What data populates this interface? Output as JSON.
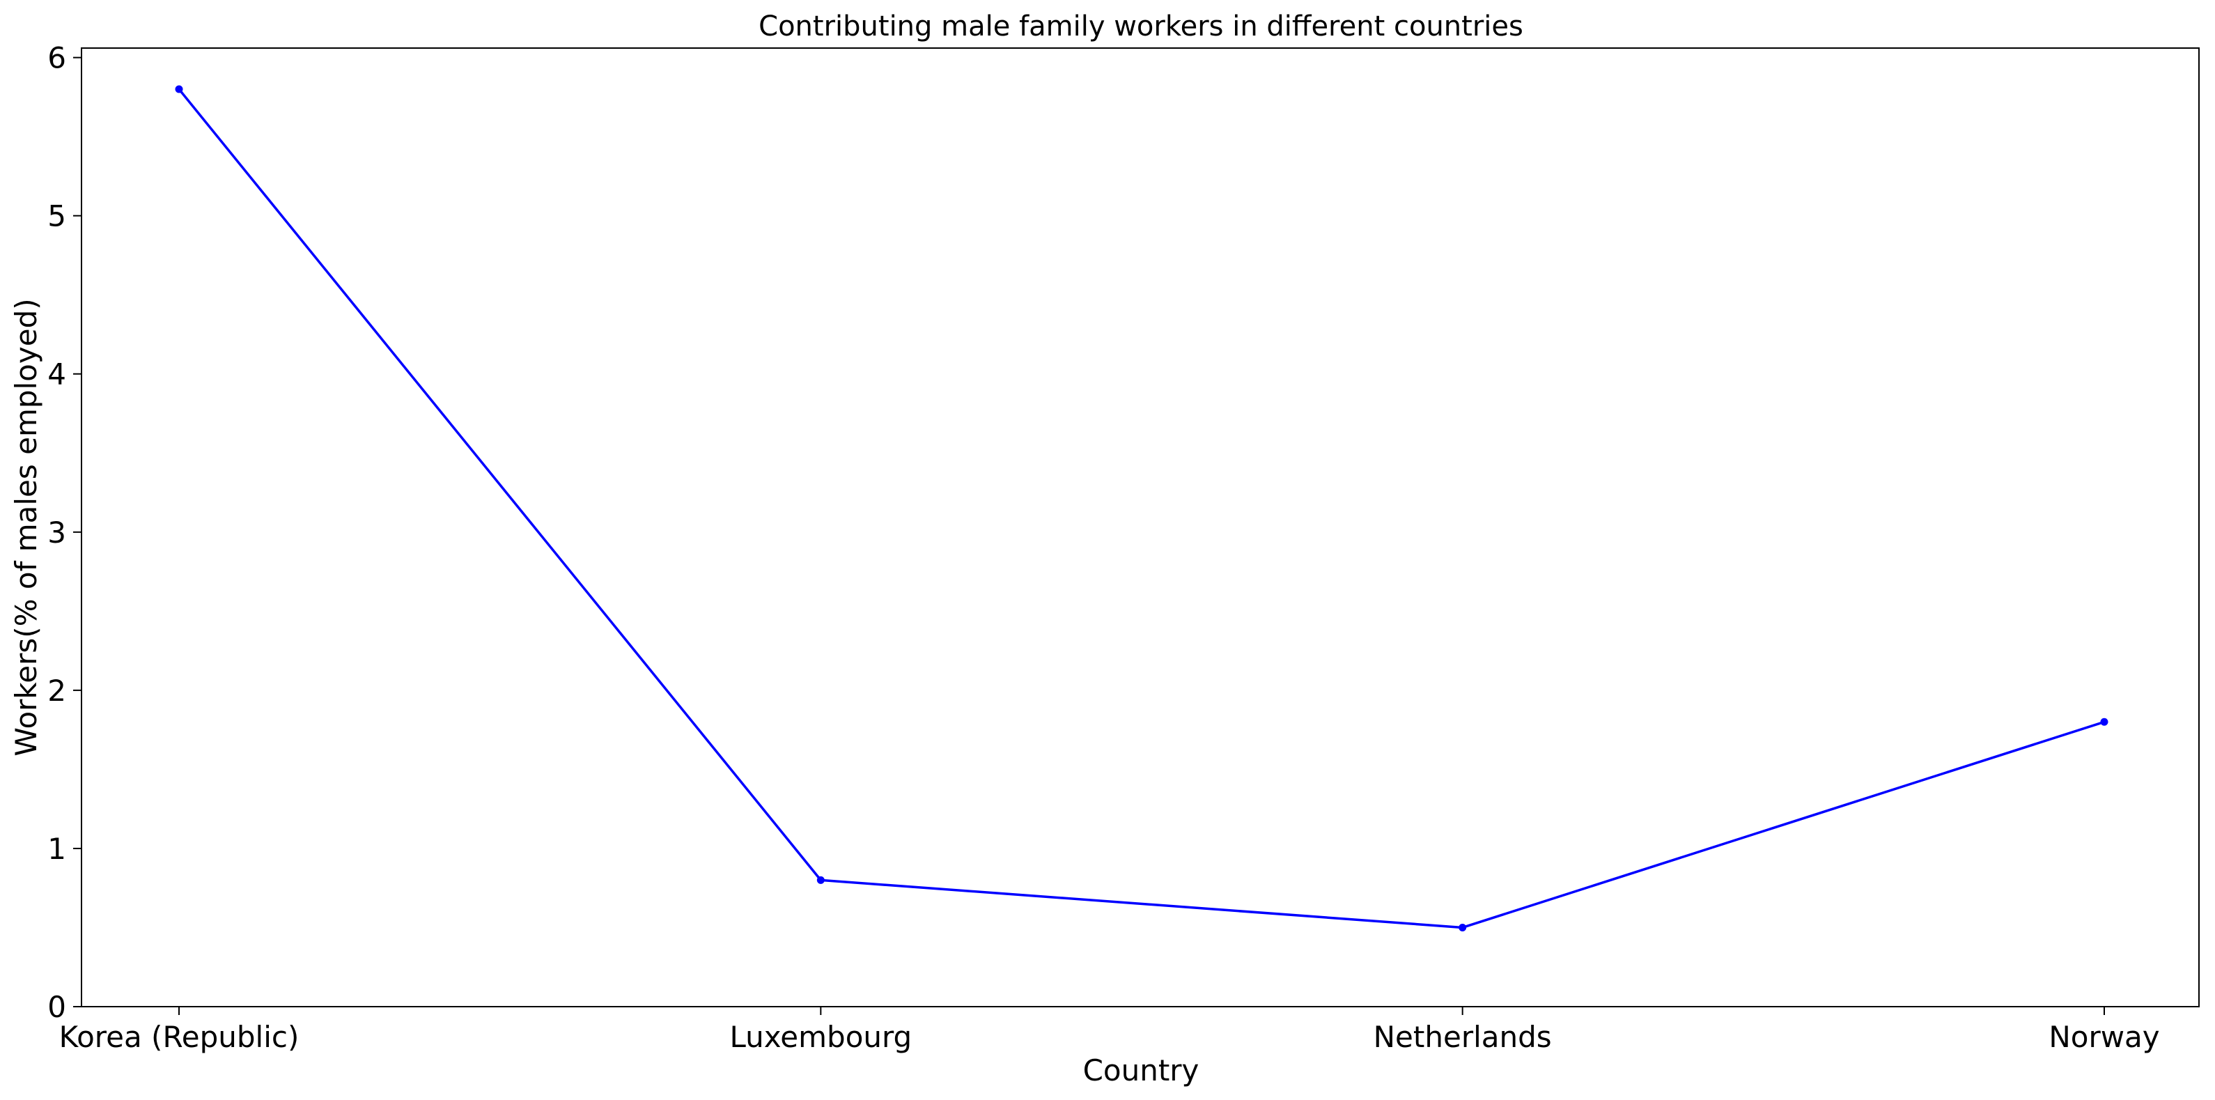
{
  "chart_data": {
    "type": "line",
    "title": "Contributing male family workers in different countries",
    "xlabel": "Country",
    "ylabel": "Workers(% of males employed)",
    "categories": [
      "Korea (Republic)",
      "Luxembourg",
      "Netherlands",
      "Norway"
    ],
    "series": [
      {
        "values": [
          5.8,
          0.8,
          0.5,
          1.8
        ],
        "color": "#0000ff",
        "marker": "circle"
      }
    ],
    "ylim": [
      0,
      6.06
    ],
    "yticks": [
      0,
      1,
      2,
      3,
      4,
      5,
      6
    ],
    "grid": false,
    "legend": "none"
  }
}
